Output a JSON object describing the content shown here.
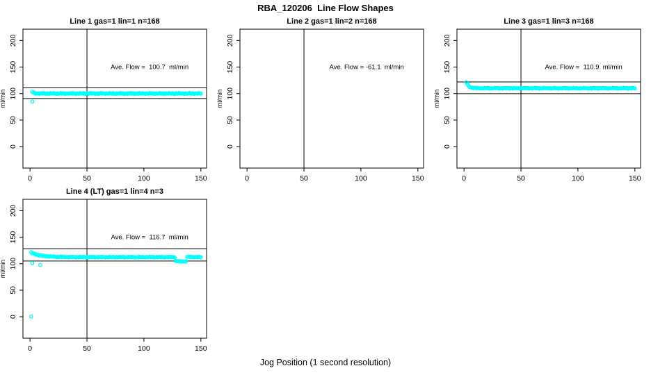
{
  "figure": {
    "title": "RBA_120206  Line Flow Shapes",
    "xlabel": "Jog Position (1 second resolution)",
    "point_color": "#00FFFF",
    "axis_color": "#000000"
  },
  "chart_data": [
    {
      "type": "scatter",
      "title": "Line 1 gas=1 lin=1 n=168",
      "n": 168,
      "annotation": "Ave. Flow =  100.7  ml/min",
      "ave_flow_ml_min": 100.7,
      "ylabel": "ml/min",
      "xlim": [
        0,
        150
      ],
      "ylim": [
        0,
        200
      ],
      "xticks": [
        0,
        50,
        100,
        150
      ],
      "yticks": [
        0,
        50,
        100,
        150,
        200
      ],
      "vline_x": 50,
      "ref_lines": [
        110.8,
        90.6
      ],
      "grid": false,
      "series_segments": [
        {
          "x0": 2,
          "x1": 150,
          "step": 1,
          "y_start": 103.5,
          "y_end": 100.2,
          "decay": 0.8,
          "jitter": 0.85
        }
      ],
      "outlier_points": [
        [
          2,
          85
        ]
      ]
    },
    {
      "type": "scatter",
      "title": "Line 2 gas=1 lin=2 n=168",
      "n": 168,
      "annotation": "Ave. Flow = -61.1  ml/min",
      "ave_flow_ml_min": -61.1,
      "ylabel": "ml/min",
      "xlim": [
        0,
        150
      ],
      "ylim": [
        0,
        200
      ],
      "xticks": [
        0,
        50,
        100,
        150
      ],
      "yticks": [
        0,
        50,
        100,
        150,
        200
      ],
      "vline_x": 50,
      "ref_lines": [],
      "grid": false,
      "series_segments": [],
      "outlier_points": []
    },
    {
      "type": "scatter",
      "title": "Line 3 gas=1 lin=3 n=168",
      "n": 168,
      "annotation": "Ave. Flow =  110.9  ml/min",
      "ave_flow_ml_min": 110.9,
      "ylabel": "ml/min",
      "xlim": [
        0,
        150
      ],
      "ylim": [
        0,
        200
      ],
      "xticks": [
        0,
        50,
        100,
        150
      ],
      "yticks": [
        0,
        50,
        100,
        150,
        200
      ],
      "vline_x": 50,
      "ref_lines": [
        122.0,
        99.8
      ],
      "grid": false,
      "series_segments": [
        {
          "x0": 2,
          "x1": 150,
          "step": 1,
          "y_start": 121.5,
          "y_end": 110.0,
          "decay": 0.45,
          "jitter": 0.9
        }
      ],
      "outlier_points": []
    },
    {
      "type": "scatter",
      "title": "Line 4 (LT) gas=1 lin=4 n=3",
      "n": 3,
      "annotation": "Ave. Flow =  116.7  ml/min",
      "ave_flow_ml_min": 116.7,
      "ylabel": "ml/min",
      "xlim": [
        0,
        150
      ],
      "ylim": [
        0,
        200
      ],
      "xticks": [
        0,
        50,
        100,
        150
      ],
      "yticks": [
        0,
        50,
        100,
        150,
        200
      ],
      "vline_x": 50,
      "ref_lines": [
        128.4,
        105.0
      ],
      "grid": false,
      "series_segments": [
        {
          "x0": 1,
          "x1": 127,
          "step": 1,
          "y_start": 121.0,
          "y_end": 112.4,
          "decay": 0.12,
          "jitter": 0.8
        },
        {
          "x0": 128,
          "x1": 137,
          "step": 1,
          "y_start": 105.0,
          "y_end": 104.3,
          "decay": 0.4,
          "jitter": 0.5
        },
        {
          "x0": 138,
          "x1": 150,
          "step": 1,
          "y_start": 113.2,
          "y_end": 112.4,
          "decay": 0.3,
          "jitter": 0.7
        }
      ],
      "outlier_points": [
        [
          1,
          0.5
        ],
        [
          2,
          101
        ],
        [
          9,
          97.5
        ]
      ]
    }
  ]
}
